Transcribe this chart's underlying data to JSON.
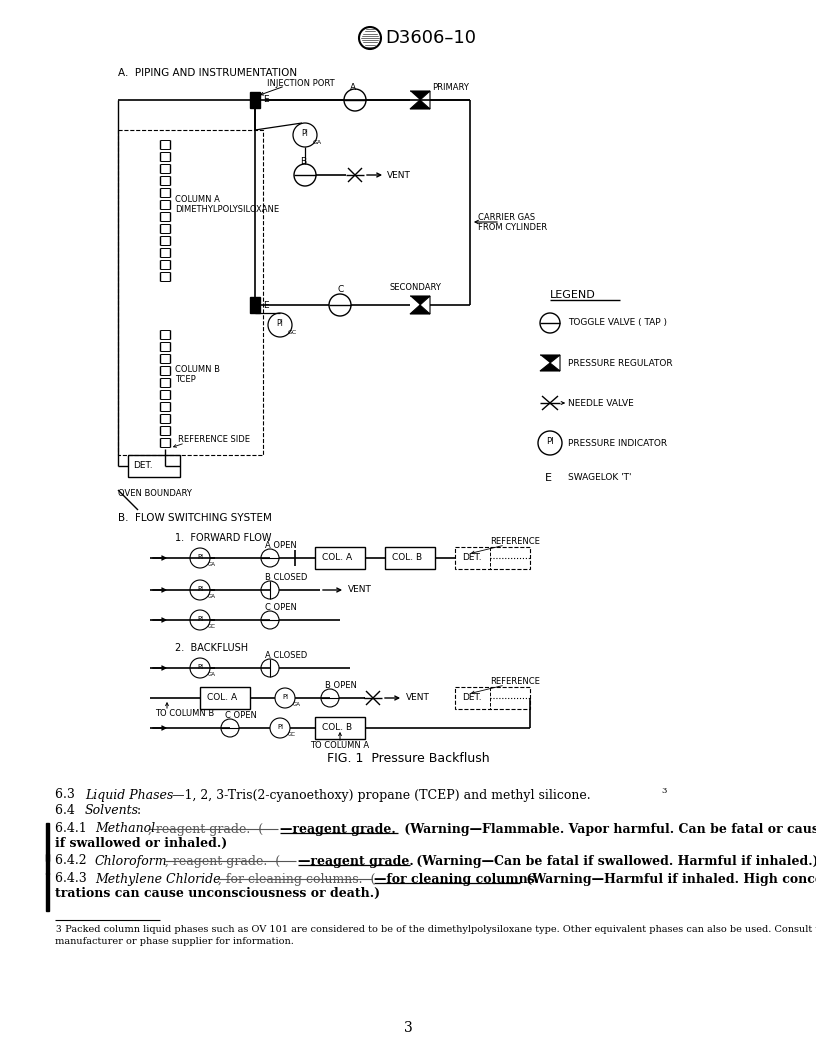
{
  "title": "D3606–10",
  "page_number": "3",
  "background_color": "#ffffff",
  "section_a_title": "A.  PIPING AND INSTRUMENTATION",
  "section_b_title": "B.  FLOW SWITCHING SYSTEM",
  "forward_flow_title": "1.  FORWARD FLOW",
  "backflush_title": "2.  BACKFLUSH",
  "fig_caption": "FIG. 1  Pressure Backflush",
  "legend_title": "LEGEND",
  "footnote_num": "3",
  "footnote_text": " Packed column liquid phases such as OV 101 are considered to be of the dimethylpolysiloxane type. Other equivalent phases can also be used. Consult with the column manufacturer or phase supplier for information."
}
